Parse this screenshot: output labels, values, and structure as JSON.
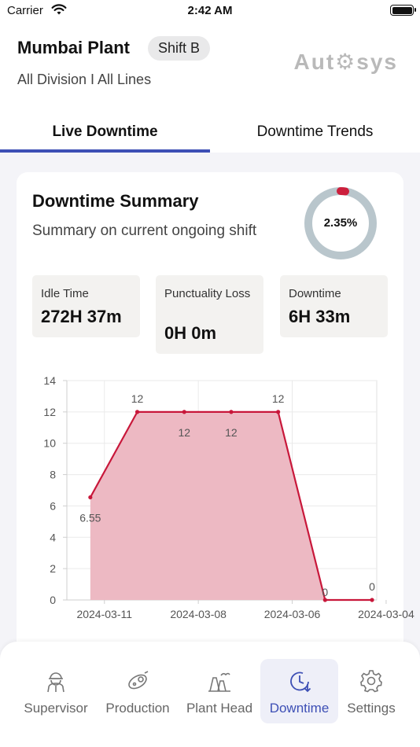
{
  "status_bar": {
    "carrier": "Carrier",
    "time": "2:42 AM"
  },
  "header": {
    "plant_name": "Mumbai Plant",
    "shift": "Shift B",
    "division": "All Division I All Lines",
    "logo": "Aut⚙sys"
  },
  "tabs": [
    {
      "label": "Live Downtime",
      "active": true
    },
    {
      "label": "Downtime Trends",
      "active": false
    }
  ],
  "summary": {
    "title": "Downtime Summary",
    "subtitle": "Summary on current ongoing shift",
    "percent_label": "2.35%",
    "percent_value": 2.35,
    "donut_track_color": "#b9c6cc",
    "donut_fill_color": "#cc1f3c"
  },
  "stats": [
    {
      "label": "Idle Time",
      "value": "272H 37m"
    },
    {
      "label": "Punctuality Loss",
      "value": "0H 0m"
    },
    {
      "label": "Downtime",
      "value": "6H 33m"
    }
  ],
  "chart_data": {
    "type": "area",
    "x_ticks": [
      "2024-03-11",
      "2024-03-08",
      "2024-03-06",
      "2024-03-04"
    ],
    "x_index_range": [
      0,
      6.6
    ],
    "x_tick_positions": [
      0.8,
      2.8,
      4.8,
      6.8
    ],
    "points": [
      {
        "x": 0.5,
        "y": 6.55,
        "label": "6.55"
      },
      {
        "x": 1.5,
        "y": 12,
        "label": "12"
      },
      {
        "x": 2.5,
        "y": 12,
        "label": "12"
      },
      {
        "x": 3.5,
        "y": 12,
        "label": "12"
      },
      {
        "x": 4.5,
        "y": 12,
        "label": "12"
      },
      {
        "x": 5.5,
        "y": 0,
        "label": "0"
      },
      {
        "x": 6.5,
        "y": 0,
        "label": "0"
      }
    ],
    "label_positions": [
      "below",
      "above",
      "below",
      "below",
      "above",
      "inside",
      "above"
    ],
    "ylim": [
      0,
      14
    ],
    "y_ticks": [
      0,
      2,
      4,
      6,
      8,
      10,
      12,
      14
    ],
    "grid": true,
    "line_color": "#c8173a",
    "fill_color": "#edb9c3"
  },
  "nav": [
    {
      "label": "Supervisor",
      "icon": "supervisor-icon",
      "active": false
    },
    {
      "label": "Production",
      "icon": "production-icon",
      "active": false
    },
    {
      "label": "Plant Head",
      "icon": "plant-head-icon",
      "active": false
    },
    {
      "label": "Downtime",
      "icon": "downtime-icon",
      "active": true
    },
    {
      "label": "Settings",
      "icon": "settings-icon",
      "active": false
    }
  ]
}
